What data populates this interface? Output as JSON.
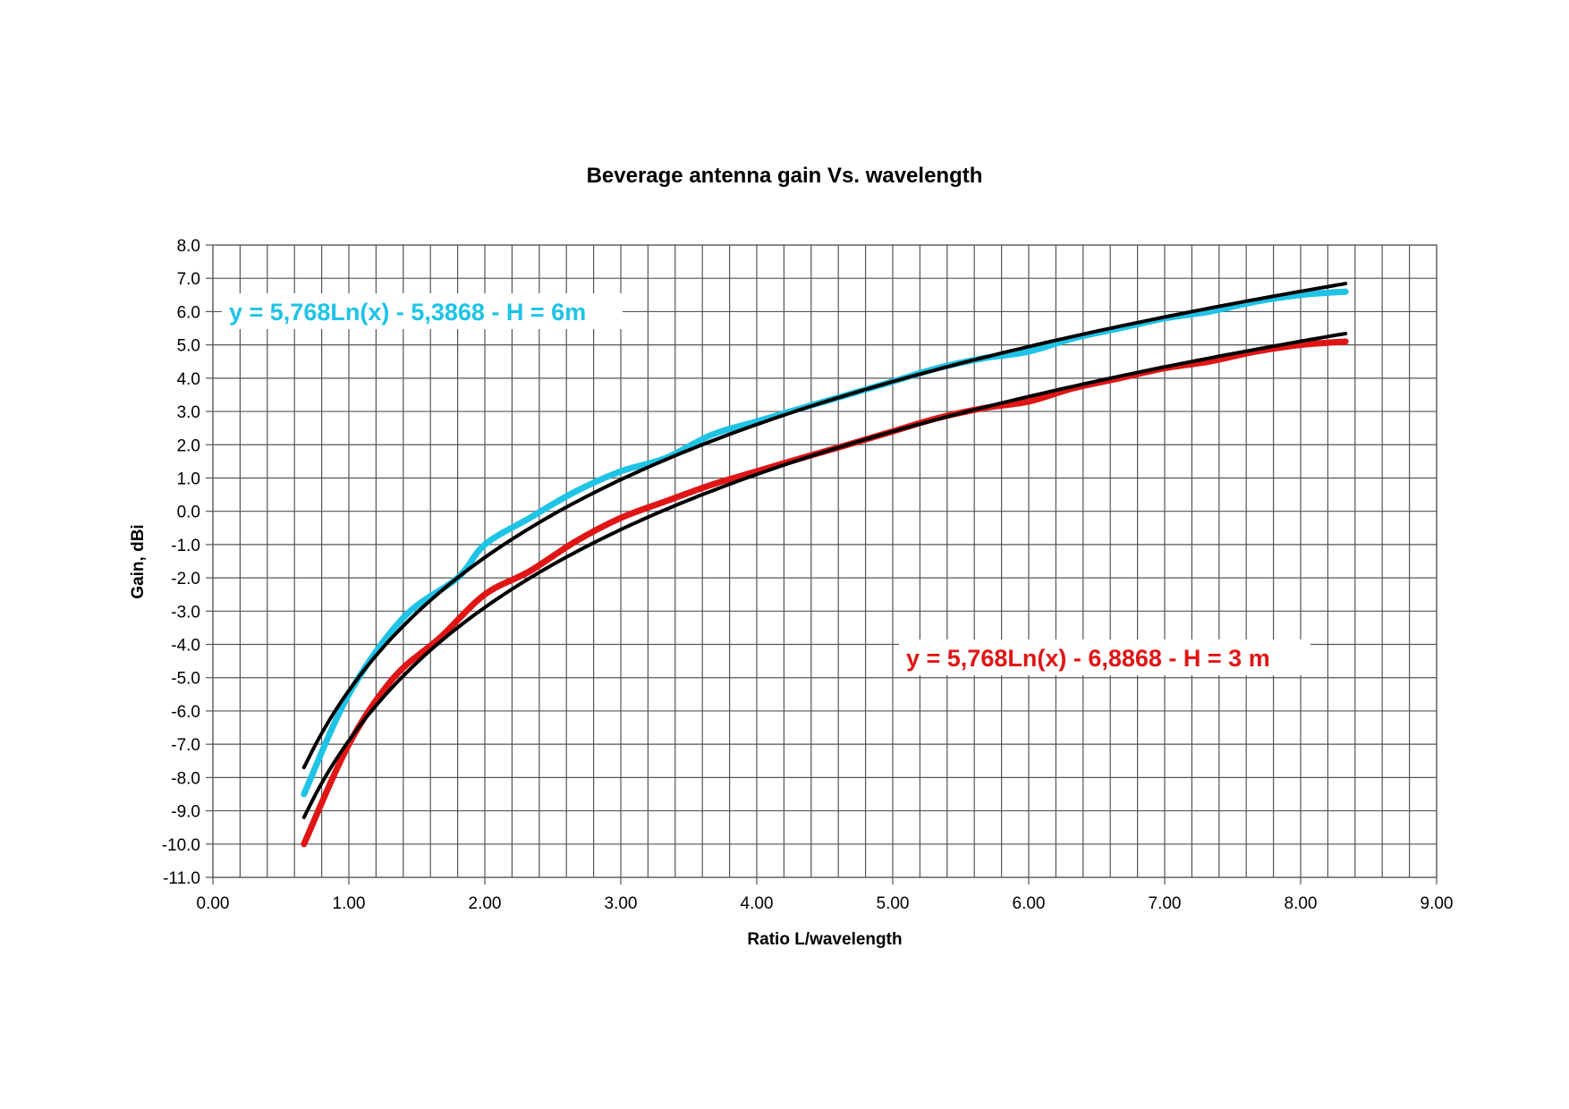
{
  "chart_data": {
    "type": "line",
    "title": "Beverage antenna gain Vs. wavelength",
    "xlabel": "Ratio L/wavelength",
    "ylabel": "Gain, dBi",
    "xlim": [
      0,
      9
    ],
    "ylim": [
      -11,
      8
    ],
    "x_ticks": [
      "0.00",
      "1.00",
      "2.00",
      "3.00",
      "4.00",
      "5.00",
      "6.00",
      "7.00",
      "8.00",
      "9.00"
    ],
    "y_ticks": [
      "8.0",
      "7.0",
      "6.0",
      "5.0",
      "4.0",
      "3.0",
      "2.0",
      "1.0",
      "0.0",
      "-1.0",
      "-2.0",
      "-3.0",
      "-4.0",
      "-5.0",
      "-6.0",
      "-7.0",
      "-8.0",
      "-9.0",
      "-10.0",
      "-11.0"
    ],
    "grid": true,
    "series": [
      {
        "color": "#1ec3e6",
        "points": [
          [
            0.67,
            -8.5
          ],
          [
            1.0,
            -5.5
          ],
          [
            1.4,
            -3.2
          ],
          [
            1.8,
            -2.0
          ],
          [
            2.0,
            -1.0
          ],
          [
            2.33,
            -0.2
          ],
          [
            2.67,
            0.6
          ],
          [
            3.0,
            1.2
          ],
          [
            3.33,
            1.6
          ],
          [
            3.67,
            2.3
          ],
          [
            4.0,
            2.7
          ],
          [
            4.33,
            3.1
          ],
          [
            4.67,
            3.5
          ],
          [
            5.0,
            3.9
          ],
          [
            5.33,
            4.3
          ],
          [
            5.67,
            4.6
          ],
          [
            6.0,
            4.8
          ],
          [
            6.33,
            5.2
          ],
          [
            6.67,
            5.5
          ],
          [
            7.0,
            5.8
          ],
          [
            7.33,
            6.0
          ],
          [
            7.67,
            6.3
          ],
          [
            8.0,
            6.5
          ],
          [
            8.33,
            6.6
          ]
        ]
      },
      {
        "color": "#e01515",
        "points": [
          [
            0.67,
            -10.0
          ],
          [
            1.0,
            -7.0
          ],
          [
            1.33,
            -5.0
          ],
          [
            1.67,
            -3.8
          ],
          [
            2.0,
            -2.5
          ],
          [
            2.33,
            -1.8
          ],
          [
            2.67,
            -0.9
          ],
          [
            3.0,
            -0.2
          ],
          [
            3.33,
            0.3
          ],
          [
            3.67,
            0.8
          ],
          [
            4.0,
            1.2
          ],
          [
            4.33,
            1.6
          ],
          [
            4.67,
            2.0
          ],
          [
            5.0,
            2.4
          ],
          [
            5.33,
            2.8
          ],
          [
            5.67,
            3.1
          ],
          [
            6.0,
            3.3
          ],
          [
            6.33,
            3.7
          ],
          [
            6.67,
            4.0
          ],
          [
            7.0,
            4.3
          ],
          [
            7.33,
            4.5
          ],
          [
            7.67,
            4.8
          ],
          [
            8.0,
            5.0
          ],
          [
            8.33,
            5.1
          ]
        ]
      },
      {
        "color": "#000000",
        "trendline": "5,768Ln(x) - 5,3868",
        "x_range": [
          0.67,
          8.33
        ],
        "a": 5.768,
        "b": -5.3868
      },
      {
        "color": "#000000",
        "trendline": "5,768Ln(x) - 6,8868",
        "x_range": [
          0.67,
          8.33
        ],
        "a": 5.768,
        "b": -6.8868
      }
    ],
    "annotations": [
      {
        "text": "y = 5,768Ln(x) - 5,3868 - H = 6m",
        "color": "#1ec3e6"
      },
      {
        "text": "y = 5,768Ln(x) - 6,8868 - H = 3 m",
        "color": "#e01515"
      }
    ]
  }
}
